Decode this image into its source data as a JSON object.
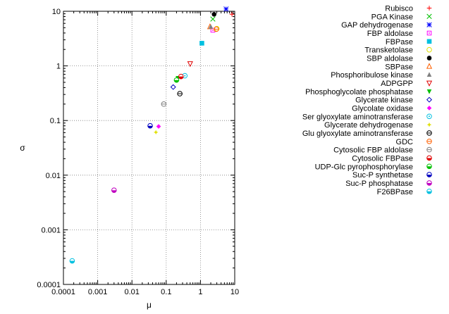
{
  "chart_data": {
    "type": "scatter",
    "title": "",
    "xlabel": "μ",
    "ylabel": "σ",
    "x_scale": "log",
    "y_scale": "log",
    "xlim": [
      0.0001,
      10
    ],
    "ylim": [
      0.0001,
      10
    ],
    "grid": true,
    "legend_position": "right",
    "x_ticks": [
      "0.0001",
      "0.001",
      "0.01",
      "0.1",
      "1",
      "10"
    ],
    "y_ticks": [
      "0.0001",
      "0.001",
      "0.01",
      "0.1",
      "1",
      "10"
    ],
    "series": [
      {
        "name": "Rubisco",
        "marker": "plus",
        "color": "#ff0000",
        "x": 8.3,
        "y": 8.8
      },
      {
        "name": "PGA Kinase",
        "marker": "cross",
        "color": "#00c000",
        "x": 2.3,
        "y": 7.2
      },
      {
        "name": "GAP dehydrogenase",
        "marker": "star",
        "color": "#0000ff",
        "x": 5.6,
        "y": 11.0
      },
      {
        "name": "FBP aldolase",
        "marker": "square-open",
        "color": "#ff00ff",
        "x": 2.3,
        "y": 4.5
      },
      {
        "name": "FBPase",
        "marker": "square-filled",
        "color": "#00c0e0",
        "x": 1.1,
        "y": 2.6
      },
      {
        "name": "Transketolase",
        "marker": "circle-open",
        "color": "#e0e000",
        "x": 3.0,
        "y": 4.8
      },
      {
        "name": "SBP aldolase",
        "marker": "circle-filled",
        "color": "#000000",
        "x": 2.5,
        "y": 8.8
      },
      {
        "name": "SBPase",
        "marker": "triangle-up-open",
        "color": "#ff6000",
        "x": 1.9,
        "y": 5.2
      },
      {
        "name": "Phosphoribulose kinase",
        "marker": "triangle-up-filled",
        "color": "#808080",
        "x": 2.0,
        "y": 5.2
      },
      {
        "name": "ADPGPP",
        "marker": "triangle-down-open",
        "color": "#e00000",
        "x": 0.5,
        "y": 1.1
      },
      {
        "name": "Phosphoglycolate phosphatase",
        "marker": "triangle-down-filled",
        "color": "#00c000",
        "x": 0.22,
        "y": 0.6
      },
      {
        "name": "Glycerate kinase",
        "marker": "diamond-open",
        "color": "#0000c0",
        "x": 0.16,
        "y": 0.41
      },
      {
        "name": "Glycolate oxidase",
        "marker": "diamond-filled",
        "color": "#ff00ff",
        "x": 0.06,
        "y": 0.078
      },
      {
        "name": "Ser glyoxylate aminotransferase",
        "marker": "circle-dot",
        "color": "#00c0e0",
        "x": 0.35,
        "y": 0.66
      },
      {
        "name": "Glycerate dehydrogenase",
        "marker": "star-filled",
        "color": "#e0e000",
        "x": 0.05,
        "y": 0.061
      },
      {
        "name": "Glu glyoxylate aminotransferase",
        "marker": "circle-bar",
        "color": "#000000",
        "x": 0.25,
        "y": 0.31
      },
      {
        "name": "GDC",
        "marker": "circle-bar",
        "color": "#ff6000",
        "x": 2.9,
        "y": 4.7
      },
      {
        "name": "Cytosolic FBP aldolase",
        "marker": "circle-bar",
        "color": "#808080",
        "x": 0.085,
        "y": 0.2
      },
      {
        "name": "Cytosolic FBPase",
        "marker": "circle-half",
        "color": "#e00000",
        "x": 0.27,
        "y": 0.64
      },
      {
        "name": "UDP-Glc pyrophosphorylase",
        "marker": "circle-half",
        "color": "#00c000",
        "x": 0.2,
        "y": 0.55
      },
      {
        "name": "Suc-P synthetase",
        "marker": "circle-half",
        "color": "#0000c0",
        "x": 0.034,
        "y": 0.08
      },
      {
        "name": "Suc-P phosphatase",
        "marker": "circle-half",
        "color": "#c000c0",
        "x": 0.003,
        "y": 0.0053
      },
      {
        "name": "F26BPase",
        "marker": "circle-half",
        "color": "#00c0e0",
        "x": 0.00018,
        "y": 0.00027
      }
    ]
  }
}
